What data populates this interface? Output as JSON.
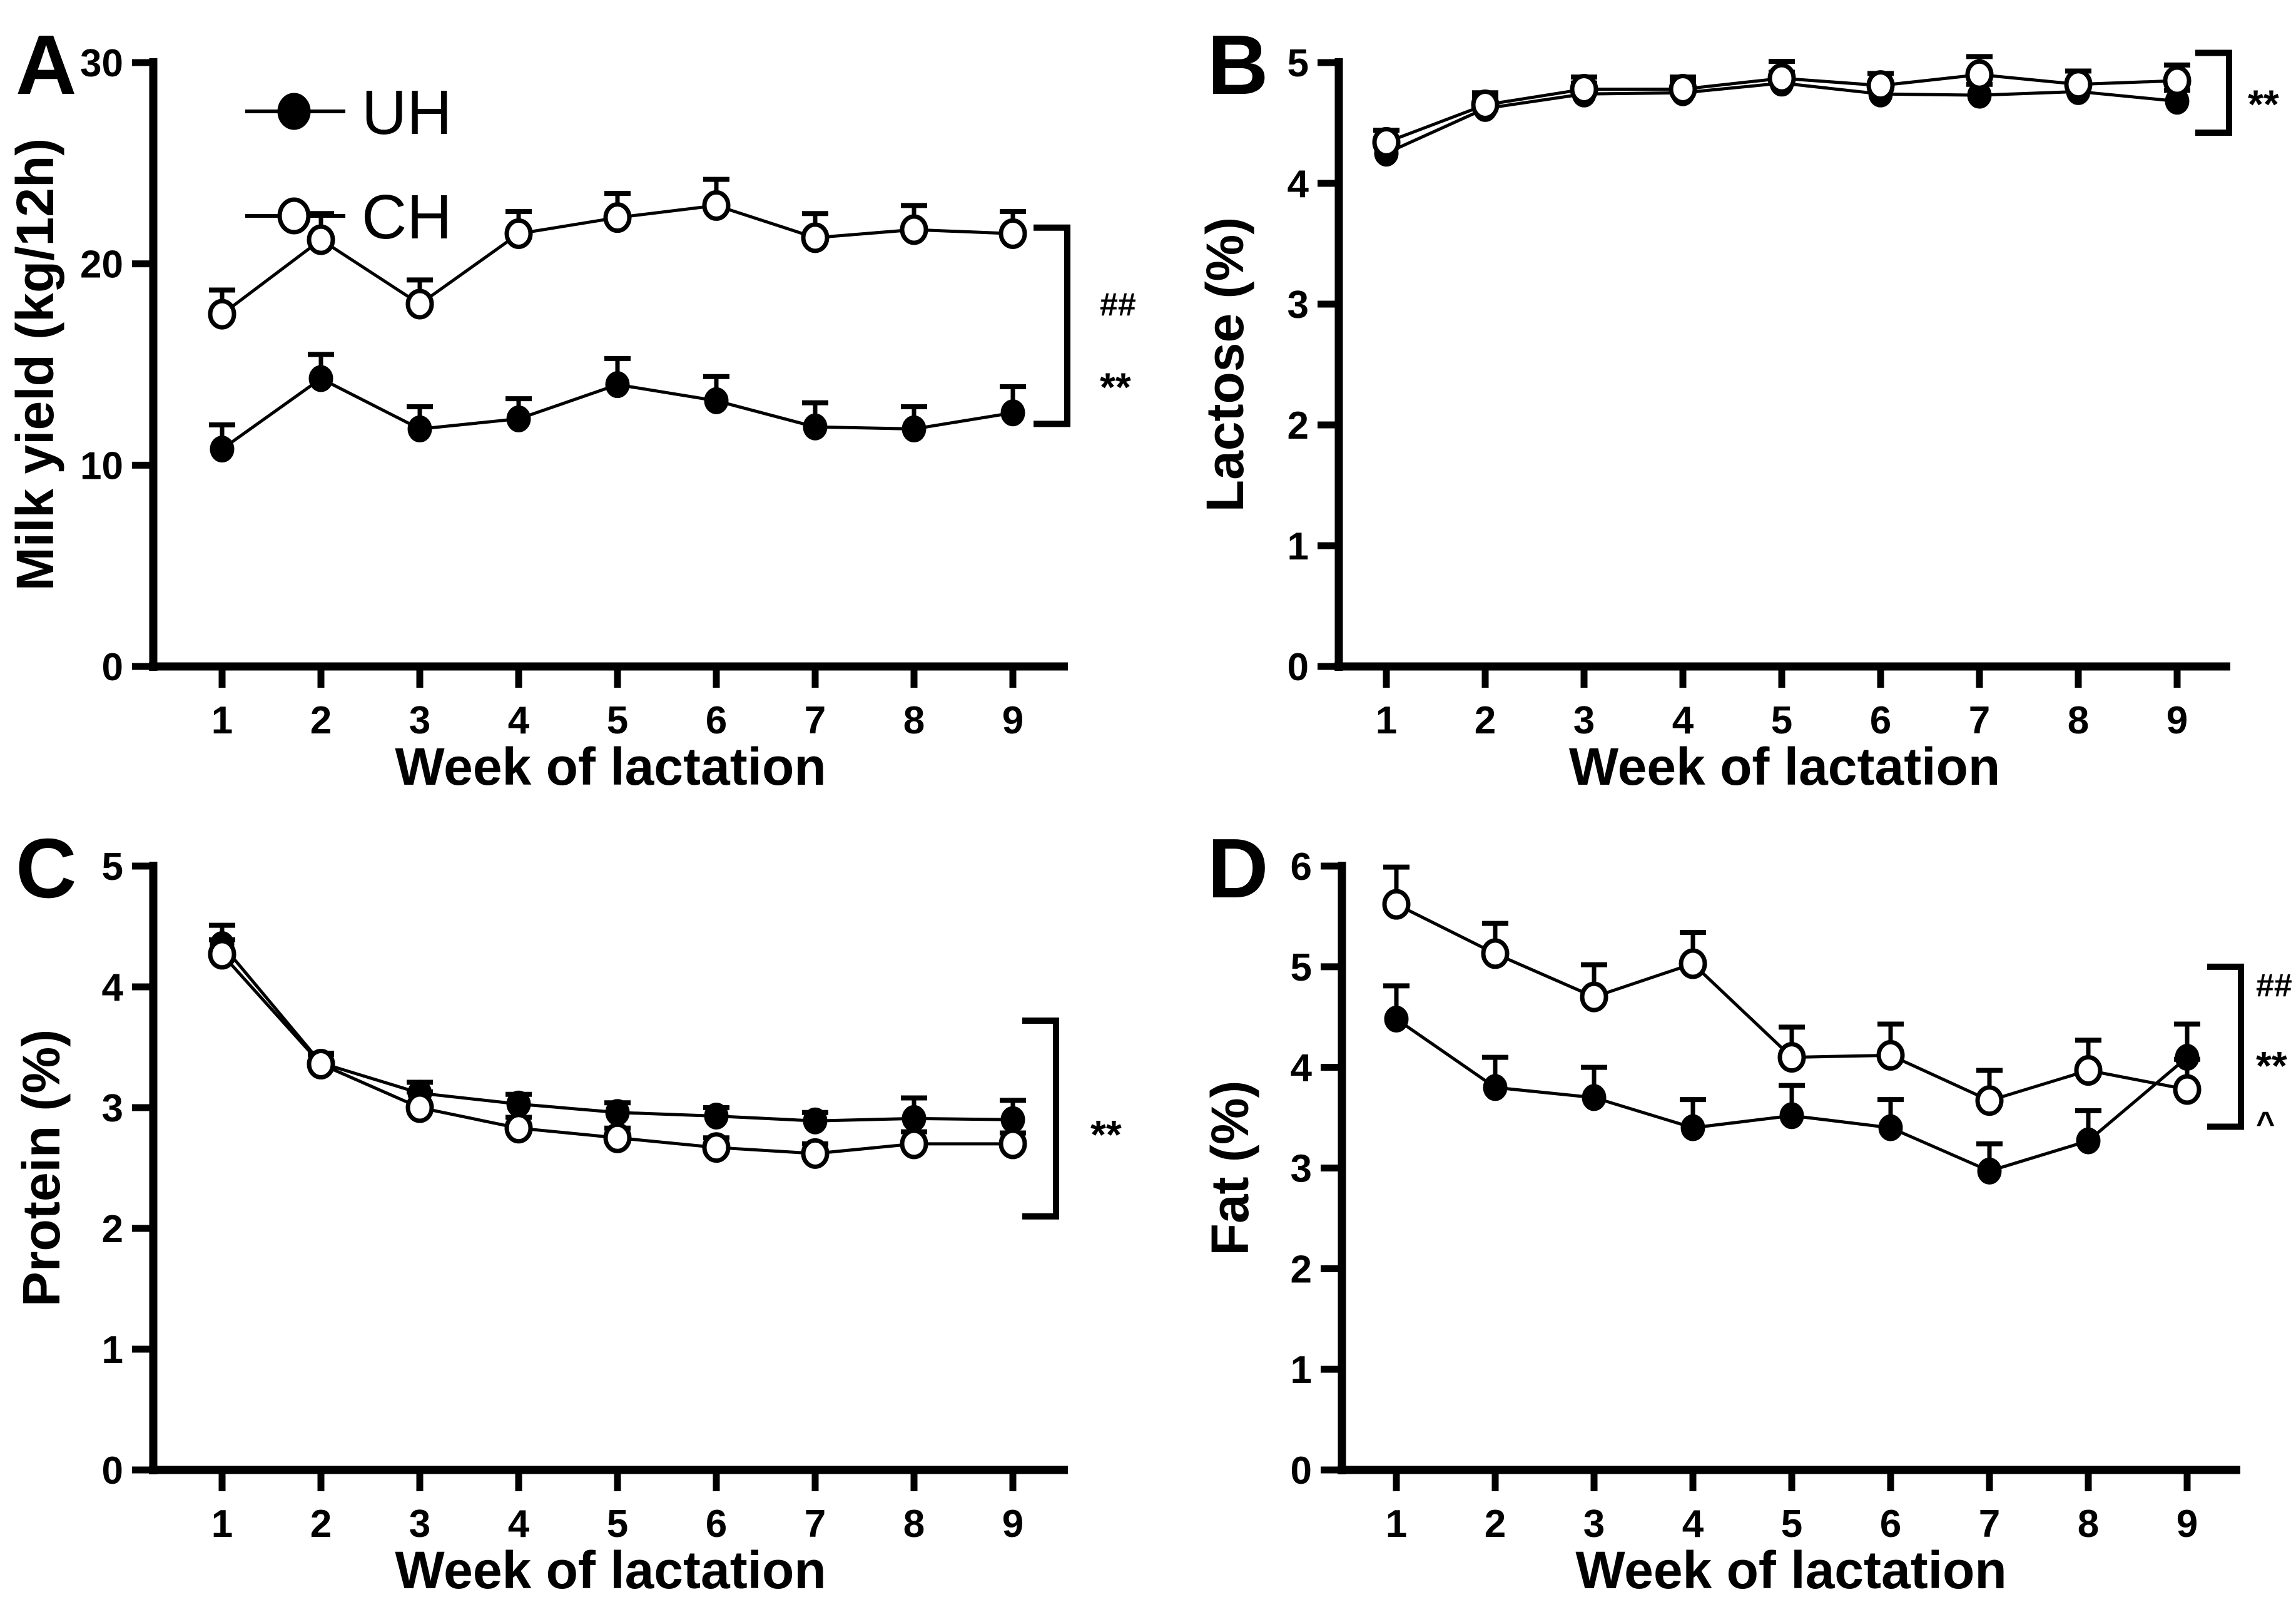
{
  "figure": {
    "background": "#ffffff",
    "ink": "#000000",
    "legend": {
      "position": "top-left-inside-panel-A",
      "items": [
        {
          "label": "UH",
          "marker": "filled-circle"
        },
        {
          "label": "CH",
          "marker": "open-circle"
        }
      ]
    }
  },
  "chart_data": [
    {
      "panel": "A",
      "type": "line",
      "title": "",
      "xlabel": "Week of lactation",
      "ylabel": "Milk yield (kg/12h)",
      "x": [
        1,
        2,
        3,
        4,
        5,
        6,
        7,
        8,
        9
      ],
      "ylim": [
        0,
        30
      ],
      "yticks": [
        0,
        10,
        20,
        30
      ],
      "grid": false,
      "show_legend": true,
      "series": [
        {
          "name": "UH",
          "marker": "filled-circle",
          "values": [
            10.8,
            14.3,
            11.8,
            12.3,
            14.0,
            13.2,
            11.9,
            11.8,
            12.6
          ],
          "errors": [
            1.2,
            1.2,
            1.1,
            1.0,
            1.3,
            1.2,
            1.2,
            1.1,
            1.3
          ]
        },
        {
          "name": "CH",
          "marker": "open-circle",
          "values": [
            17.5,
            21.2,
            18.0,
            21.5,
            22.3,
            22.9,
            21.3,
            21.7,
            21.5
          ],
          "errors": [
            1.2,
            1.3,
            1.2,
            1.1,
            1.2,
            1.3,
            1.2,
            1.2,
            1.1
          ]
        }
      ],
      "significance": {
        "bracket_from": 21.8,
        "bracket_to": 12.05,
        "labels": [
          {
            "text": "##",
            "at": 18.0
          },
          {
            "text": "**",
            "at": 14.5
          }
        ]
      }
    },
    {
      "panel": "B",
      "type": "line",
      "title": "",
      "xlabel": "Week of lactation",
      "ylabel": "Lactose (%)",
      "x": [
        1,
        2,
        3,
        4,
        5,
        6,
        7,
        8,
        9
      ],
      "ylim": [
        0,
        5
      ],
      "yticks": [
        0,
        1,
        2,
        3,
        4,
        5
      ],
      "grid": false,
      "show_legend": false,
      "series": [
        {
          "name": "UH",
          "marker": "filled-circle",
          "values": [
            4.25,
            4.62,
            4.74,
            4.75,
            4.83,
            4.74,
            4.73,
            4.76,
            4.68
          ],
          "errors": [
            0.09,
            0.09,
            0.09,
            0.09,
            0.09,
            0.09,
            0.09,
            0.09,
            0.09
          ]
        },
        {
          "name": "CH",
          "marker": "open-circle",
          "values": [
            4.34,
            4.65,
            4.78,
            4.78,
            4.87,
            4.81,
            4.9,
            4.82,
            4.85
          ],
          "errors": [
            0.1,
            0.1,
            0.1,
            0.1,
            0.14,
            0.1,
            0.15,
            0.11,
            0.13
          ]
        }
      ],
      "significance": {
        "bracket_from": 5.08,
        "bracket_to": 4.42,
        "labels": [
          {
            "text": "**",
            "at": 4.76
          }
        ]
      }
    },
    {
      "panel": "C",
      "type": "line",
      "title": "",
      "xlabel": "Week of lactation",
      "ylabel": "Protein (%)",
      "x": [
        1,
        2,
        3,
        4,
        5,
        6,
        7,
        8,
        9
      ],
      "ylim": [
        0,
        5
      ],
      "yticks": [
        0,
        1,
        2,
        3,
        4,
        5
      ],
      "grid": false,
      "show_legend": false,
      "series": [
        {
          "name": "UH",
          "marker": "filled-circle",
          "values": [
            4.35,
            3.37,
            3.12,
            3.03,
            2.96,
            2.93,
            2.89,
            2.91,
            2.9
          ],
          "errors": [
            0.16,
            0.08,
            0.09,
            0.08,
            0.08,
            0.07,
            0.07,
            0.17,
            0.16
          ]
        },
        {
          "name": "CH",
          "marker": "open-circle",
          "values": [
            4.27,
            3.36,
            3.0,
            2.83,
            2.75,
            2.67,
            2.62,
            2.7,
            2.7
          ],
          "errors": [
            0.12,
            0.08,
            0.13,
            0.09,
            0.08,
            0.08,
            0.08,
            0.1,
            0.09
          ]
        }
      ],
      "significance": {
        "bracket_from": 3.72,
        "bracket_to": 2.1,
        "labels": [
          {
            "text": "**",
            "at": 2.88
          }
        ]
      }
    },
    {
      "panel": "D",
      "type": "line",
      "title": "",
      "xlabel": "Week of lactation",
      "ylabel": "Fat (%)",
      "x": [
        1,
        2,
        3,
        4,
        5,
        6,
        7,
        8,
        9
      ],
      "ylim": [
        0,
        6
      ],
      "yticks": [
        0,
        1,
        2,
        3,
        4,
        5,
        6
      ],
      "grid": false,
      "show_legend": false,
      "series": [
        {
          "name": "UH",
          "marker": "filled-circle",
          "values": [
            4.48,
            3.8,
            3.7,
            3.4,
            3.52,
            3.4,
            2.97,
            3.27,
            4.1
          ],
          "errors": [
            0.33,
            0.3,
            0.3,
            0.28,
            0.3,
            0.28,
            0.27,
            0.3,
            0.33
          ]
        },
        {
          "name": "CH",
          "marker": "open-circle",
          "values": [
            5.62,
            5.13,
            4.7,
            5.03,
            4.1,
            4.12,
            3.67,
            3.97,
            3.78
          ],
          "errors": [
            0.37,
            0.3,
            0.32,
            0.31,
            0.3,
            0.31,
            0.3,
            0.3,
            0.3
          ]
        }
      ],
      "significance": {
        "bracket_from": 5.0,
        "bracket_to": 3.41,
        "labels": [
          {
            "text": "##",
            "at": 4.82
          },
          {
            "text": "**",
            "at": 4.14
          },
          {
            "text": "^",
            "at": 3.56
          }
        ]
      }
    }
  ]
}
